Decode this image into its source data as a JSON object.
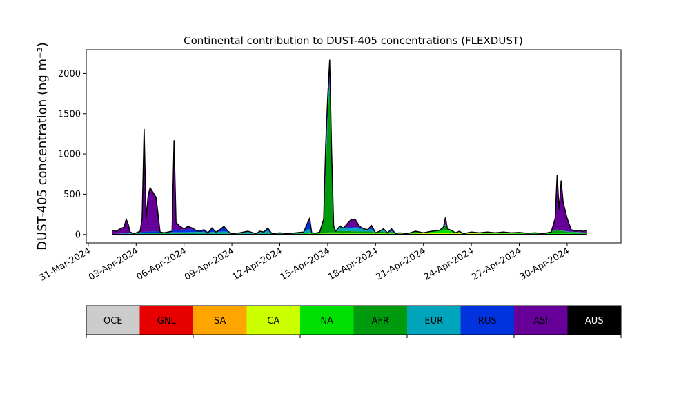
{
  "chart_data": {
    "type": "area",
    "title": "Continental contribution to DUST-405 concentrations (FLEXDUST)",
    "ylabel": "DUST-405 concentration (ng m⁻³)",
    "xlabel": "",
    "ylim": [
      -105,
      2295
    ],
    "yticks": [
      0,
      500,
      1000,
      1500,
      2000
    ],
    "xlim": [
      "2024-03-30T21:00",
      "2024-05-03T09:00"
    ],
    "xticks": [
      "2024-03-31",
      "2024-04-03",
      "2024-04-06",
      "2024-04-09",
      "2024-04-12",
      "2024-04-15",
      "2024-04-18",
      "2024-04-21",
      "2024-04-24",
      "2024-04-27",
      "2024-04-30"
    ],
    "xtick_labels": [
      "31-Mar-2024",
      "03-Apr-2024",
      "06-Apr-2024",
      "09-Apr-2024",
      "12-Apr-2024",
      "15-Apr-2024",
      "18-Apr-2024",
      "21-Apr-2024",
      "24-Apr-2024",
      "27-Apr-2024",
      "30-Apr-2024"
    ],
    "grid": false,
    "stacked": true,
    "total_outline_color": "#000000",
    "total": [
      [
        "2024-04-01T12:00",
        50
      ],
      [
        "2024-04-01T18:00",
        40
      ],
      [
        "2024-04-02T00:00",
        70
      ],
      [
        "2024-04-02T06:00",
        90
      ],
      [
        "2024-04-02T09:00",
        190
      ],
      [
        "2024-04-02T12:00",
        130
      ],
      [
        "2024-04-02T15:00",
        30
      ],
      [
        "2024-04-02T21:00",
        10
      ],
      [
        "2024-04-03T00:00",
        20
      ],
      [
        "2024-04-03T06:00",
        40
      ],
      [
        "2024-04-03T09:00",
        200
      ],
      [
        "2024-04-03T12:00",
        1310
      ],
      [
        "2024-04-03T15:00",
        200
      ],
      [
        "2024-04-03T18:00",
        480
      ],
      [
        "2024-04-03T21:00",
        580
      ],
      [
        "2024-04-04T03:00",
        500
      ],
      [
        "2024-04-04T06:00",
        460
      ],
      [
        "2024-04-04T12:00",
        30
      ],
      [
        "2024-04-04T18:00",
        20
      ],
      [
        "2024-04-05T00:00",
        30
      ],
      [
        "2024-04-05T06:00",
        40
      ],
      [
        "2024-04-05T09:00",
        1170
      ],
      [
        "2024-04-05T12:00",
        150
      ],
      [
        "2024-04-05T18:00",
        100
      ],
      [
        "2024-04-06T00:00",
        70
      ],
      [
        "2024-04-06T06:00",
        100
      ],
      [
        "2024-04-06T12:00",
        80
      ],
      [
        "2024-04-06T18:00",
        50
      ],
      [
        "2024-04-07T00:00",
        40
      ],
      [
        "2024-04-07T06:00",
        60
      ],
      [
        "2024-04-07T12:00",
        20
      ],
      [
        "2024-04-07T18:00",
        80
      ],
      [
        "2024-04-08T00:00",
        30
      ],
      [
        "2024-04-08T06:00",
        60
      ],
      [
        "2024-04-08T12:00",
        100
      ],
      [
        "2024-04-08T18:00",
        40
      ],
      [
        "2024-04-09T00:00",
        10
      ],
      [
        "2024-04-09T12:00",
        20
      ],
      [
        "2024-04-10T00:00",
        40
      ],
      [
        "2024-04-10T12:00",
        10
      ],
      [
        "2024-04-10T18:00",
        40
      ],
      [
        "2024-04-11T00:00",
        30
      ],
      [
        "2024-04-11T06:00",
        80
      ],
      [
        "2024-04-11T12:00",
        10
      ],
      [
        "2024-04-12T00:00",
        20
      ],
      [
        "2024-04-12T12:00",
        10
      ],
      [
        "2024-04-13T00:00",
        20
      ],
      [
        "2024-04-13T12:00",
        30
      ],
      [
        "2024-04-13T18:00",
        150
      ],
      [
        "2024-04-13T21:00",
        200
      ],
      [
        "2024-04-14T00:00",
        20
      ],
      [
        "2024-04-14T06:00",
        15
      ],
      [
        "2024-04-14T12:00",
        30
      ],
      [
        "2024-04-14T18:00",
        190
      ],
      [
        "2024-04-14T21:00",
        1110
      ],
      [
        "2024-04-15T00:00",
        1700
      ],
      [
        "2024-04-15T03:00",
        2170
      ],
      [
        "2024-04-15T06:00",
        1000
      ],
      [
        "2024-04-15T09:00",
        100
      ],
      [
        "2024-04-15T12:00",
        40
      ],
      [
        "2024-04-15T18:00",
        100
      ],
      [
        "2024-04-16T00:00",
        80
      ],
      [
        "2024-04-16T06:00",
        140
      ],
      [
        "2024-04-16T12:00",
        190
      ],
      [
        "2024-04-16T18:00",
        180
      ],
      [
        "2024-04-17T00:00",
        100
      ],
      [
        "2024-04-17T06:00",
        70
      ],
      [
        "2024-04-17T12:00",
        60
      ],
      [
        "2024-04-17T18:00",
        110
      ],
      [
        "2024-04-18T00:00",
        20
      ],
      [
        "2024-04-18T06:00",
        40
      ],
      [
        "2024-04-18T12:00",
        70
      ],
      [
        "2024-04-18T18:00",
        20
      ],
      [
        "2024-04-19T00:00",
        70
      ],
      [
        "2024-04-19T06:00",
        10
      ],
      [
        "2024-04-19T12:00",
        20
      ],
      [
        "2024-04-20T00:00",
        10
      ],
      [
        "2024-04-20T12:00",
        40
      ],
      [
        "2024-04-21T00:00",
        20
      ],
      [
        "2024-04-21T12:00",
        40
      ],
      [
        "2024-04-22T00:00",
        50
      ],
      [
        "2024-04-22T06:00",
        90
      ],
      [
        "2024-04-22T09:00",
        210
      ],
      [
        "2024-04-22T12:00",
        70
      ],
      [
        "2024-04-22T18:00",
        50
      ],
      [
        "2024-04-23T00:00",
        20
      ],
      [
        "2024-04-23T06:00",
        40
      ],
      [
        "2024-04-23T12:00",
        10
      ],
      [
        "2024-04-24T00:00",
        30
      ],
      [
        "2024-04-24T12:00",
        20
      ],
      [
        "2024-04-25T00:00",
        30
      ],
      [
        "2024-04-25T12:00",
        20
      ],
      [
        "2024-04-26T00:00",
        30
      ],
      [
        "2024-04-26T12:00",
        20
      ],
      [
        "2024-04-27T00:00",
        25
      ],
      [
        "2024-04-27T12:00",
        15
      ],
      [
        "2024-04-28T00:00",
        20
      ],
      [
        "2024-04-28T12:00",
        10
      ],
      [
        "2024-04-29T00:00",
        30
      ],
      [
        "2024-04-29T06:00",
        200
      ],
      [
        "2024-04-29T09:00",
        740
      ],
      [
        "2024-04-29T12:00",
        300
      ],
      [
        "2024-04-29T15:00",
        670
      ],
      [
        "2024-04-29T18:00",
        400
      ],
      [
        "2024-04-30T00:00",
        200
      ],
      [
        "2024-04-30T06:00",
        60
      ],
      [
        "2024-04-30T12:00",
        40
      ],
      [
        "2024-04-30T18:00",
        50
      ],
      [
        "2024-05-01T00:00",
        40
      ],
      [
        "2024-05-01T06:00",
        50
      ]
    ],
    "series_colors": {
      "OCE": "#cccccc",
      "GNL": "#e60000",
      "SA": "#ffa500",
      "CA": "#ccff00",
      "NA": "#00e000",
      "AFR": "#009a0f",
      "EUR": "#00a4bb",
      "RUS": "#0033dd",
      "ASI": "#660099",
      "AUS": "#000000"
    },
    "components": [
      {
        "name": "CA",
        "values": [
          [
            "2024-04-01T12:00",
            0
          ],
          [
            "2024-04-13T00:00",
            2
          ],
          [
            "2024-04-15T03:00",
            10
          ],
          [
            "2024-04-20T00:00",
            8
          ],
          [
            "2024-04-22T09:00",
            20
          ],
          [
            "2024-04-25T00:00",
            10
          ],
          [
            "2024-04-29T09:00",
            5
          ],
          [
            "2024-05-01T06:00",
            3
          ]
        ]
      },
      {
        "name": "NA",
        "values": [
          [
            "2024-04-01T12:00",
            0
          ],
          [
            "2024-04-13T00:00",
            3
          ],
          [
            "2024-04-15T03:00",
            15
          ],
          [
            "2024-04-20T00:00",
            10
          ],
          [
            "2024-04-22T09:00",
            30
          ],
          [
            "2024-04-25T00:00",
            8
          ],
          [
            "2024-04-29T09:00",
            10
          ],
          [
            "2024-05-01T06:00",
            5
          ]
        ]
      },
      {
        "name": "AFR",
        "values": [
          [
            "2024-04-01T12:00",
            5
          ],
          [
            "2024-04-03T12:00",
            10
          ],
          [
            "2024-04-05T09:00",
            10
          ],
          [
            "2024-04-10T00:00",
            5
          ],
          [
            "2024-04-14T06:00",
            5
          ],
          [
            "2024-04-14T18:00",
            150
          ],
          [
            "2024-04-14T21:00",
            700
          ],
          [
            "2024-04-15T00:00",
            1400
          ],
          [
            "2024-04-15T03:00",
            1850
          ],
          [
            "2024-04-15T06:00",
            900
          ],
          [
            "2024-04-15T09:00",
            60
          ],
          [
            "2024-04-15T18:00",
            20
          ],
          [
            "2024-04-17T00:00",
            15
          ],
          [
            "2024-04-20T00:00",
            15
          ],
          [
            "2024-04-22T09:00",
            60
          ],
          [
            "2024-04-23T00:00",
            10
          ],
          [
            "2024-04-28T00:00",
            5
          ],
          [
            "2024-04-29T09:00",
            40
          ],
          [
            "2024-04-30T00:00",
            20
          ],
          [
            "2024-05-01T06:00",
            10
          ]
        ]
      },
      {
        "name": "EUR",
        "values": [
          [
            "2024-04-01T12:00",
            0
          ],
          [
            "2024-04-15T03:00",
            50
          ],
          [
            "2024-04-18T12:00",
            20
          ],
          [
            "2024-04-18T18:00",
            5
          ],
          [
            "2024-04-22T09:00",
            10
          ],
          [
            "2024-05-01T06:00",
            2
          ]
        ]
      },
      {
        "name": "RUS",
        "values": [
          [
            "2024-04-01T12:00",
            0
          ],
          [
            "2024-04-15T03:00",
            100
          ],
          [
            "2024-04-15T09:00",
            5
          ],
          [
            "2024-04-18T12:00",
            30
          ],
          [
            "2024-04-19T00:00",
            20
          ],
          [
            "2024-04-20T00:00",
            5
          ],
          [
            "2024-05-01T06:00",
            2
          ]
        ]
      }
    ],
    "remainder_series": "ASI",
    "legend": {
      "placement": "bottom",
      "entries": [
        "OCE",
        "GNL",
        "SA",
        "CA",
        "NA",
        "AFR",
        "EUR",
        "RUS",
        "ASI",
        "AUS"
      ]
    }
  }
}
